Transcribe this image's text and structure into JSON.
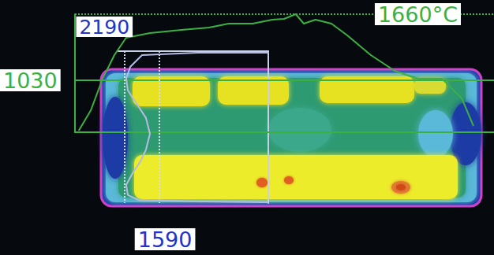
{
  "chart_data": [
    {
      "type": "line",
      "x": [
        0.9,
        3.8,
        6.6,
        9.4,
        12.2,
        17.9,
        25.4,
        32.0,
        36.7,
        42.4,
        47.1,
        49.9,
        52.7,
        54.6,
        57.4,
        61.2,
        65.0,
        70.6,
        76.3,
        81.9,
        87.6,
        92.3,
        95.1
      ],
      "values": [
        550,
        745,
        1045,
        1270,
        1435,
        1480,
        1510,
        1533,
        1570,
        1570,
        1608,
        1615,
        1660,
        1570,
        1608,
        1570,
        1458,
        1270,
        1120,
        1045,
        1045,
        858,
        595
      ],
      "color": "#3cb043",
      "xlim": [
        0,
        100
      ],
      "ylim": [
        535,
        1660
      ],
      "yticks": [
        1030,
        {
          "value": 1660,
          "label": "1660°C"
        }
      ],
      "tick_labels": "y",
      "grid": true
    },
    {
      "type": "line",
      "x": [
        -290,
        937,
        1891,
        2096,
        2164,
        2136,
        2000,
        1823,
        1755,
        1823,
        1918,
        2055,
        2164,
        2136,
        1959,
        937,
        -290
      ],
      "y": [
        1.0,
        1.0,
        2.6,
        10.4,
        18.1,
        25.9,
        33.7,
        44.0,
        54.4,
        64.8,
        72.5,
        80.3,
        88.1,
        94.8,
        97.9,
        99.0,
        99.5
      ],
      "color": "#b4bce4",
      "xlim": [
        2300,
        -290
      ],
      "ylim": [
        100,
        0
      ],
      "xticks": [
        1590,
        2190
      ],
      "tick_labels": "x",
      "grid": true
    }
  ]
}
